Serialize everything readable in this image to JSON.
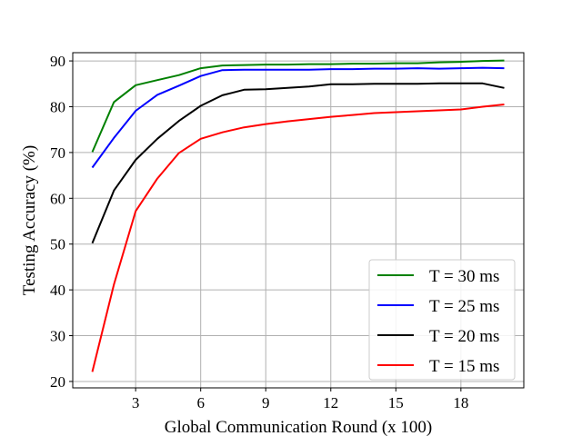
{
  "chart_data": {
    "type": "line",
    "xlabel": "Global Communication Round (x 100)",
    "ylabel": "Testing Accuracy (%)",
    "xlim": [
      0.1,
      20.9
    ],
    "ylim": [
      18.6,
      91.8
    ],
    "xticks": [
      3,
      6,
      9,
      12,
      15,
      18
    ],
    "yticks": [
      20,
      30,
      40,
      50,
      60,
      70,
      80,
      90
    ],
    "grid": true,
    "legend_position": "lower-right",
    "x": [
      1,
      2,
      3,
      4,
      5,
      6,
      7,
      8,
      9,
      10,
      11,
      12,
      13,
      14,
      15,
      16,
      17,
      18,
      19,
      20
    ],
    "series": [
      {
        "name": "T = 30 ms",
        "color": "#008000",
        "values": [
          70.1,
          81.0,
          84.7,
          85.8,
          86.9,
          88.4,
          89.0,
          89.1,
          89.2,
          89.2,
          89.3,
          89.3,
          89.4,
          89.4,
          89.5,
          89.5,
          89.7,
          89.8,
          90.0,
          90.1
        ]
      },
      {
        "name": "T = 25 ms",
        "color": "#0000ff",
        "values": [
          66.7,
          73.2,
          79.1,
          82.6,
          84.6,
          86.7,
          88.0,
          88.1,
          88.1,
          88.1,
          88.1,
          88.2,
          88.2,
          88.3,
          88.3,
          88.4,
          88.3,
          88.4,
          88.5,
          88.4
        ]
      },
      {
        "name": "T = 20 ms",
        "color": "#000000",
        "values": [
          50.2,
          61.7,
          68.4,
          73.0,
          76.9,
          80.2,
          82.5,
          83.7,
          83.8,
          84.1,
          84.4,
          84.9,
          84.9,
          85.0,
          85.0,
          85.0,
          85.1,
          85.1,
          85.1,
          84.1
        ]
      },
      {
        "name": "T = 15 ms",
        "color": "#ff0000",
        "values": [
          22.1,
          41.2,
          57.2,
          64.3,
          69.9,
          73.0,
          74.4,
          75.5,
          76.2,
          76.8,
          77.3,
          77.8,
          78.2,
          78.6,
          78.8,
          79.0,
          79.2,
          79.4,
          80.0,
          80.5
        ]
      }
    ]
  }
}
